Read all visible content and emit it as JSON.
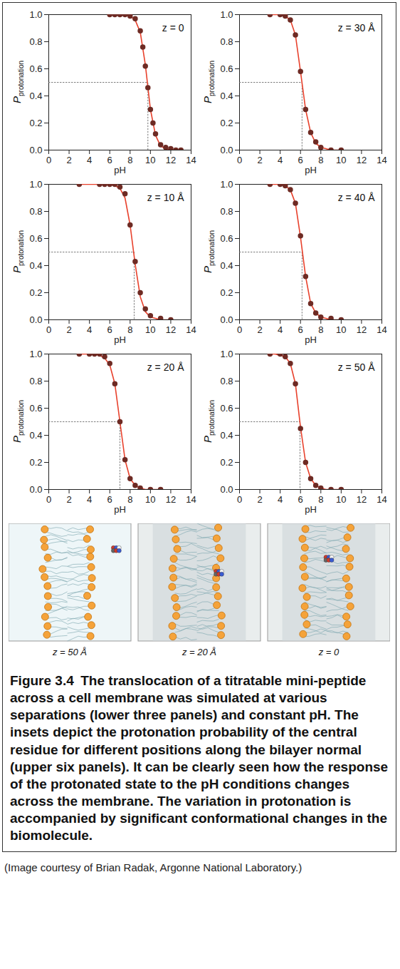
{
  "chart_data": [
    {
      "type": "scatter",
      "title": "z = 0",
      "xlabel": "pH",
      "ylabel": {
        "main": "P",
        "sub": "protonation"
      },
      "xlim": [
        0,
        14
      ],
      "xticks": [
        0,
        2,
        4,
        6,
        8,
        10,
        12,
        14
      ],
      "ylim": [
        0,
        1
      ],
      "yticks": [
        {
          "value": 0,
          "label": "0.0"
        },
        0.2,
        0.4,
        0.6,
        0.8,
        {
          "value": 1,
          "label": "1.0"
        }
      ],
      "reference": {
        "x": 9.75,
        "y": 0.5,
        "line_style": "dotted"
      },
      "series": [
        {
          "type": "line",
          "color": "#e8412c",
          "x": [
            6,
            6.5,
            7,
            7.5,
            8,
            8.5,
            9,
            9.5,
            10,
            10.5,
            11,
            11.5,
            12,
            12.5,
            13
          ],
          "values": [
            1,
            1,
            1,
            1,
            0.99,
            0.96,
            0.87,
            0.63,
            0.3,
            0.11,
            0.03,
            0.01,
            0,
            0,
            0
          ]
        },
        {
          "type": "scatter",
          "marker": "circle",
          "color": "#6e2b24",
          "x": [
            6,
            6.5,
            7,
            7.5,
            8,
            8.5,
            9,
            9.25,
            9.5,
            9.75,
            10,
            10.25,
            10.5,
            11,
            11.5,
            12,
            12.5,
            13
          ],
          "values": [
            1,
            1,
            1,
            1,
            0.99,
            0.97,
            0.88,
            0.76,
            0.62,
            0.46,
            0.3,
            0.2,
            0.12,
            0.04,
            0.02,
            0.01,
            0,
            0
          ]
        }
      ]
    },
    {
      "type": "scatter",
      "title": "z = 10 Å",
      "xlabel": "pH",
      "ylabel": {
        "main": "P",
        "sub": "protonation"
      },
      "xlim": [
        0,
        14
      ],
      "xticks": [
        0,
        2,
        4,
        6,
        8,
        10,
        12,
        14
      ],
      "ylim": [
        0,
        1
      ],
      "yticks": [
        {
          "value": 0,
          "label": "0.0"
        },
        0.2,
        0.4,
        0.6,
        0.8,
        {
          "value": 1,
          "label": "1.0"
        }
      ],
      "reference": {
        "x": 8.4,
        "y": 0.5,
        "line_style": "dotted"
      },
      "series": [
        {
          "type": "line",
          "color": "#e8412c",
          "x": [
            3,
            3.5,
            4,
            4.5,
            5,
            5.5,
            6,
            6.5,
            7,
            7.5,
            8,
            8.5,
            9,
            9.5,
            10,
            10.5,
            11,
            11.5,
            12
          ],
          "values": [
            1,
            1,
            1,
            1,
            1,
            1,
            1,
            0.99,
            0.97,
            0.9,
            0.7,
            0.41,
            0.17,
            0.06,
            0.02,
            0.01,
            0,
            0,
            0
          ]
        },
        {
          "type": "scatter",
          "marker": "circle",
          "color": "#6e2b24",
          "x": [
            3,
            5,
            5.5,
            6,
            6.5,
            7,
            7.5,
            8,
            8.5,
            9,
            9.5,
            10,
            11,
            12
          ],
          "values": [
            1,
            1,
            1,
            1,
            1,
            0.98,
            0.93,
            0.7,
            0.43,
            0.2,
            0.08,
            0.03,
            0.01,
            0
          ]
        }
      ]
    },
    {
      "type": "scatter",
      "title": "z = 20 Å",
      "xlabel": "pH",
      "ylabel": {
        "main": "P",
        "sub": "protonation"
      },
      "xlim": [
        0,
        14
      ],
      "xticks": [
        0,
        2,
        4,
        6,
        8,
        10,
        12,
        14
      ],
      "ylim": [
        0,
        1
      ],
      "yticks": [
        {
          "value": 0,
          "label": "0.0"
        },
        0.2,
        0.4,
        0.6,
        0.8,
        {
          "value": 1,
          "label": "1.0"
        }
      ],
      "reference": {
        "x": 7.0,
        "y": 0.5,
        "line_style": "dotted"
      },
      "series": [
        {
          "type": "line",
          "color": "#e8412c",
          "x": [
            3,
            3.5,
            4,
            4.5,
            5,
            5.5,
            6,
            6.5,
            7,
            7.5,
            8,
            8.5,
            9,
            9.5,
            10,
            10.5,
            11
          ],
          "values": [
            1,
            1,
            1,
            1,
            0.99,
            0.97,
            0.92,
            0.78,
            0.5,
            0.22,
            0.08,
            0.03,
            0.01,
            0,
            0,
            0,
            0
          ]
        },
        {
          "type": "scatter",
          "marker": "circle",
          "color": "#6e2b24",
          "x": [
            3,
            4,
            4.5,
            5,
            5.5,
            6,
            6.5,
            7,
            7.5,
            8,
            8.5,
            9,
            10,
            11
          ],
          "values": [
            1,
            1,
            1,
            1,
            0.98,
            0.93,
            0.78,
            0.5,
            0.22,
            0.08,
            0.03,
            0.01,
            0,
            0
          ]
        }
      ]
    },
    {
      "type": "scatter",
      "title": "z = 30 Å",
      "xlabel": "pH",
      "ylabel": {
        "main": "P",
        "sub": "protonation"
      },
      "xlim": [
        0,
        14
      ],
      "xticks": [
        0,
        2,
        4,
        6,
        8,
        10,
        12,
        14
      ],
      "ylim": [
        0,
        1
      ],
      "yticks": [
        {
          "value": 0,
          "label": "0.0"
        },
        0.2,
        0.4,
        0.6,
        0.8,
        {
          "value": 1,
          "label": "1.0"
        }
      ],
      "reference": {
        "x": 6.15,
        "y": 0.5,
        "line_style": "dotted"
      },
      "series": [
        {
          "type": "line",
          "color": "#e8412c",
          "x": [
            3,
            3.5,
            4,
            4.5,
            5,
            5.5,
            6,
            6.5,
            7,
            7.5,
            8,
            8.5,
            9,
            9.5,
            10
          ],
          "values": [
            1,
            1,
            1,
            0.99,
            0.96,
            0.85,
            0.58,
            0.3,
            0.13,
            0.05,
            0.02,
            0.01,
            0,
            0,
            0
          ]
        },
        {
          "type": "scatter",
          "marker": "circle",
          "color": "#6e2b24",
          "x": [
            3,
            4,
            4.5,
            5,
            5.5,
            6,
            6.5,
            7,
            7.5,
            8,
            9,
            10
          ],
          "values": [
            1,
            1,
            0.99,
            0.96,
            0.85,
            0.58,
            0.3,
            0.13,
            0.06,
            0.02,
            0,
            0
          ]
        }
      ]
    },
    {
      "type": "scatter",
      "title": "z = 40 Å",
      "xlabel": "pH",
      "ylabel": {
        "main": "P",
        "sub": "protonation"
      },
      "xlim": [
        0,
        14
      ],
      "xticks": [
        0,
        2,
        4,
        6,
        8,
        10,
        12,
        14
      ],
      "ylim": [
        0,
        1
      ],
      "yticks": [
        {
          "value": 0,
          "label": "0.0"
        },
        0.2,
        0.4,
        0.6,
        0.8,
        {
          "value": 1,
          "label": "1.0"
        }
      ],
      "reference": {
        "x": 6.15,
        "y": 0.5,
        "line_style": "dotted"
      },
      "series": [
        {
          "type": "line",
          "color": "#e8412c",
          "x": [
            3,
            3.5,
            4,
            4.5,
            5,
            5.5,
            6,
            6.5,
            7,
            7.5,
            8,
            8.5,
            9,
            9.5,
            10
          ],
          "values": [
            1,
            1,
            1,
            0.99,
            0.96,
            0.86,
            0.61,
            0.32,
            0.12,
            0.05,
            0.02,
            0.01,
            0,
            0,
            0
          ]
        },
        {
          "type": "scatter",
          "marker": "circle",
          "color": "#6e2b24",
          "x": [
            3,
            4,
            4.5,
            5,
            5.5,
            6,
            6.5,
            7,
            7.5,
            8,
            9,
            10
          ],
          "values": [
            1,
            1,
            0.99,
            0.96,
            0.86,
            0.62,
            0.32,
            0.12,
            0.05,
            0.02,
            0.01,
            0
          ]
        }
      ]
    },
    {
      "type": "scatter",
      "title": "z = 50 Å",
      "xlabel": "pH",
      "ylabel": {
        "main": "P",
        "sub": "protonation"
      },
      "xlim": [
        0,
        14
      ],
      "xticks": [
        0,
        2,
        4,
        6,
        8,
        10,
        12,
        14
      ],
      "ylim": [
        0,
        1
      ],
      "yticks": [
        {
          "value": 0,
          "label": "0.0"
        },
        0.2,
        0.4,
        0.6,
        0.8,
        {
          "value": 1,
          "label": "1.0"
        }
      ],
      "reference": {
        "x": 5.95,
        "y": 0.5,
        "line_style": "dotted"
      },
      "series": [
        {
          "type": "line",
          "color": "#e8412c",
          "x": [
            3,
            3.5,
            4,
            4.5,
            5,
            5.5,
            6,
            6.5,
            7,
            7.5,
            8,
            8.5,
            9,
            9.5,
            10
          ],
          "values": [
            1,
            1,
            0.99,
            0.98,
            0.93,
            0.78,
            0.46,
            0.2,
            0.08,
            0.03,
            0.01,
            0,
            0,
            0,
            0
          ]
        },
        {
          "type": "scatter",
          "marker": "circle",
          "color": "#6e2b24",
          "x": [
            3,
            4,
            4.5,
            5,
            5.5,
            6,
            6.5,
            7,
            7.5,
            8,
            9,
            10
          ],
          "values": [
            1,
            1,
            0.98,
            0.93,
            0.78,
            0.45,
            0.2,
            0.08,
            0.03,
            0.01,
            0,
            0
          ]
        }
      ]
    }
  ],
  "snapshots": [
    {
      "label": "z = 50 Å"
    },
    {
      "label": "z = 20 Å"
    },
    {
      "label": "z = 0"
    }
  ],
  "caption": {
    "label": "Figure 3.4",
    "text": "The translocation of a titratable mini-peptide across a cell membrane was simulated at various separations (lower three panels) and constant pH. The insets depict the protonation probability of the central residue for different positions along the bilayer normal (upper six panels). It can be clearly seen how the response of the protonated state to the pH conditions changes across the membrane. The variation in protonation is accompanied by significant conformational changes in the biomolecule."
  },
  "credit": "(Image courtesy of Brian Radak, Argonne National Laboratory.)"
}
